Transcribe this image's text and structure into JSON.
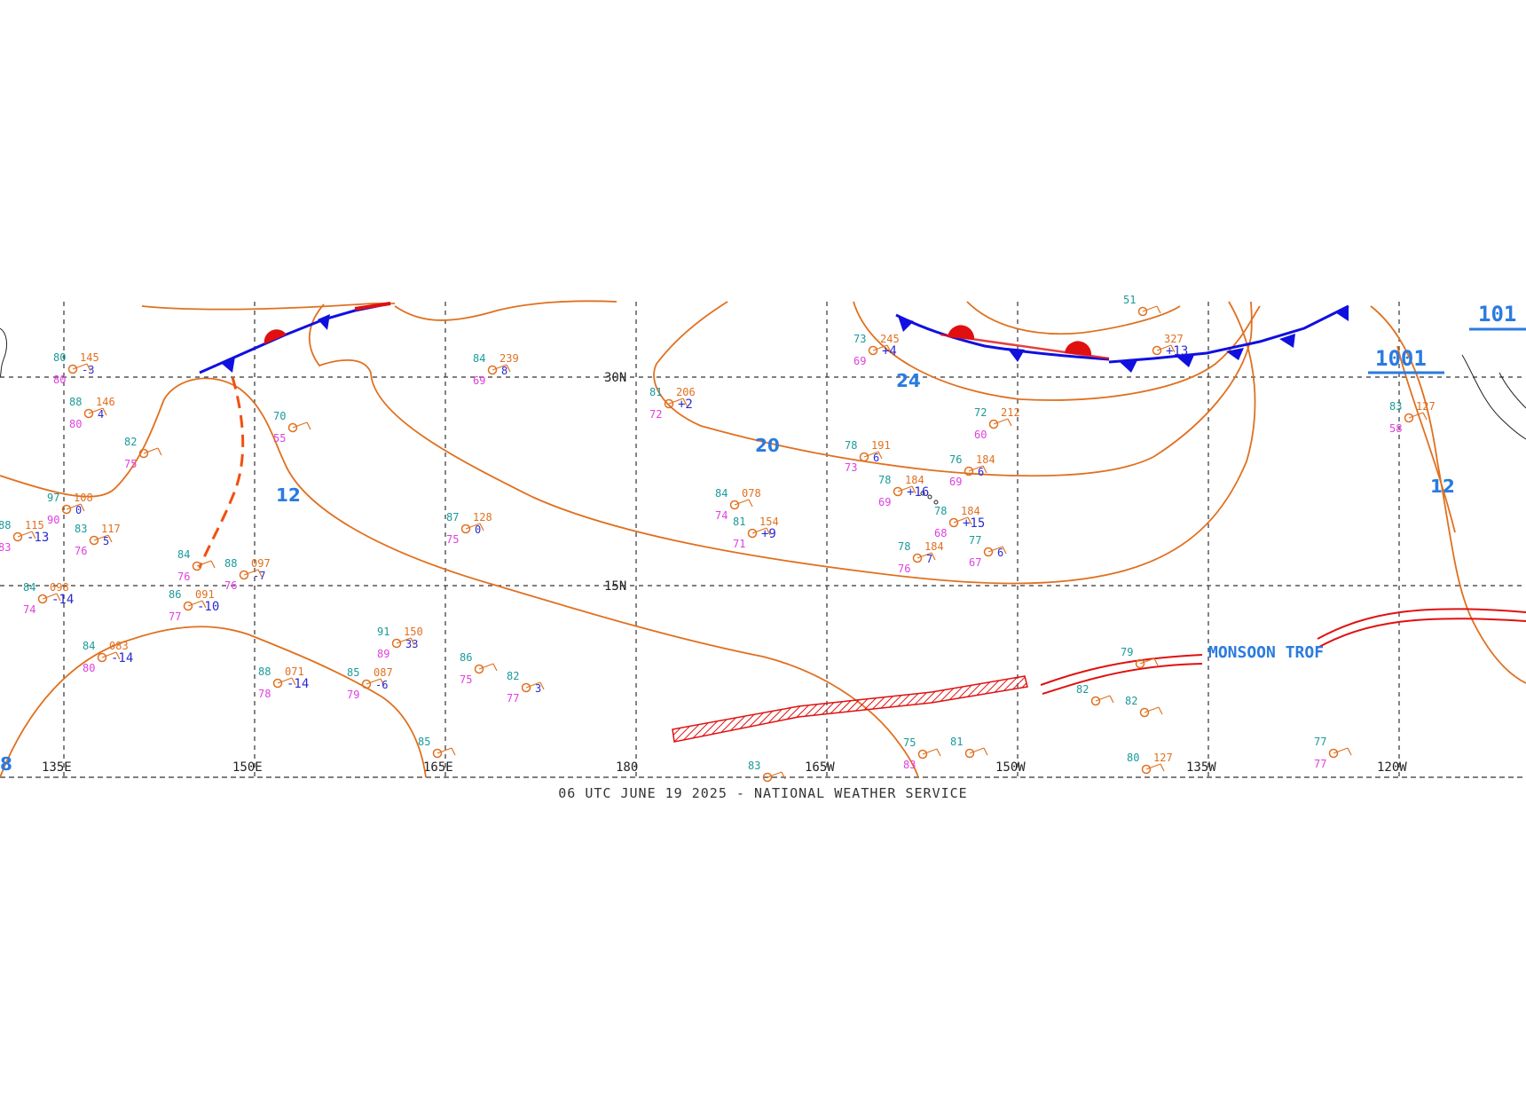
{
  "footer_label": "06 UTC JUNE 19 2025 - NATIONAL WEATHER SERVICE",
  "axes": {
    "longitude_labels": [
      "135E",
      "150E",
      "165E",
      "180",
      "165W",
      "150W",
      "135W",
      "120W"
    ],
    "latitude_labels": [
      "30N",
      "15N"
    ]
  },
  "isobar_labels": [
    "24",
    "20",
    "12",
    "12",
    "8"
  ],
  "pressure_centers": [
    "1001",
    "101"
  ],
  "features": {
    "monsoon_label": "MONSOON TROF"
  },
  "colors": {
    "isobar": "#e0701f",
    "cold_front": "#1010e0",
    "warm_front": "#e01010",
    "trough": "#f05010",
    "monsoon": "#e01010",
    "iso_label": "#2a7be0",
    "temp": "#1a9a9a",
    "dewpoint": "#e040e0",
    "pressure": "#e0701f",
    "tendency": "#2a2ad0"
  },
  "stations": [
    {
      "t": "88",
      "p": "146",
      "d": "80",
      "r": "4"
    },
    {
      "t": "80",
      "p": "145",
      "d": "80",
      "r": "-3"
    },
    {
      "t": "82",
      "p": "",
      "d": "75",
      "r": ""
    },
    {
      "t": "97",
      "p": "108",
      "d": "90",
      "r": "0"
    },
    {
      "t": "88",
      "p": "115",
      "d": "83",
      "r": "-13"
    },
    {
      "t": "83",
      "p": "117",
      "d": "76",
      "r": "5"
    },
    {
      "t": "84",
      "p": "098",
      "d": "74",
      "r": "-14"
    },
    {
      "t": "84",
      "p": "",
      "d": "76",
      "r": ""
    },
    {
      "t": "88",
      "p": "097",
      "d": "76",
      "r": "-7"
    },
    {
      "t": "86",
      "p": "091",
      "d": "77",
      "r": "-10"
    },
    {
      "t": "84",
      "p": "083",
      "d": "80",
      "r": "-14"
    },
    {
      "t": "70",
      "p": "",
      "d": "55",
      "r": ""
    },
    {
      "t": "84",
      "p": "239",
      "d": "69",
      "r": "8"
    },
    {
      "t": "87",
      "p": "128",
      "d": "75",
      "r": "0"
    },
    {
      "t": "91",
      "p": "150",
      "d": "89",
      "r": "33"
    },
    {
      "t": "88",
      "p": "071",
      "d": "78",
      "r": "-14"
    },
    {
      "t": "85",
      "p": "087",
      "d": "79",
      "r": "-6"
    },
    {
      "t": "86",
      "p": "",
      "d": "75",
      "r": ""
    },
    {
      "t": "82",
      "p": "",
      "d": "77",
      "r": "3"
    },
    {
      "t": "81",
      "p": "206",
      "d": "72",
      "r": "+2"
    },
    {
      "t": "84",
      "p": "078",
      "d": "74",
      "r": ""
    },
    {
      "t": "81",
      "p": "154",
      "d": "71",
      "r": "+9"
    },
    {
      "t": "73",
      "p": "245",
      "d": "69",
      "r": "+4"
    },
    {
      "t": "72",
      "p": "212",
      "d": "60",
      "r": ""
    },
    {
      "t": "78",
      "p": "191",
      "d": "73",
      "r": "6"
    },
    {
      "t": "76",
      "p": "184",
      "d": "69",
      "r": "6"
    },
    {
      "t": "78",
      "p": "184",
      "d": "69",
      "r": "+16"
    },
    {
      "t": "78",
      "p": "184",
      "d": "68",
      "r": "+15"
    },
    {
      "t": "78",
      "p": "184",
      "d": "76",
      "r": "7"
    },
    {
      "t": "77",
      "p": "",
      "d": "67",
      "r": "6"
    },
    {
      "t": "",
      "p": "327",
      "d": "",
      "r": "+13"
    },
    {
      "t": "83",
      "p": "127",
      "d": "58",
      "r": ""
    },
    {
      "t": "79",
      "p": "",
      "d": "",
      "r": ""
    },
    {
      "t": "82",
      "p": "",
      "d": "",
      "r": ""
    },
    {
      "t": "80",
      "p": "127",
      "d": "",
      "r": ""
    },
    {
      "t": "77",
      "p": "",
      "d": "77",
      "r": ""
    },
    {
      "t": "75",
      "p": "",
      "d": "83",
      "r": ""
    },
    {
      "t": "81",
      "p": "",
      "d": "",
      "r": ""
    },
    {
      "t": "83",
      "p": "",
      "d": "",
      "r": ""
    },
    {
      "t": "85",
      "p": "",
      "d": "",
      "r": ""
    },
    {
      "t": "82",
      "p": "",
      "d": "",
      "r": ""
    },
    {
      "t": "51",
      "p": "",
      "d": "",
      "r": ""
    }
  ]
}
